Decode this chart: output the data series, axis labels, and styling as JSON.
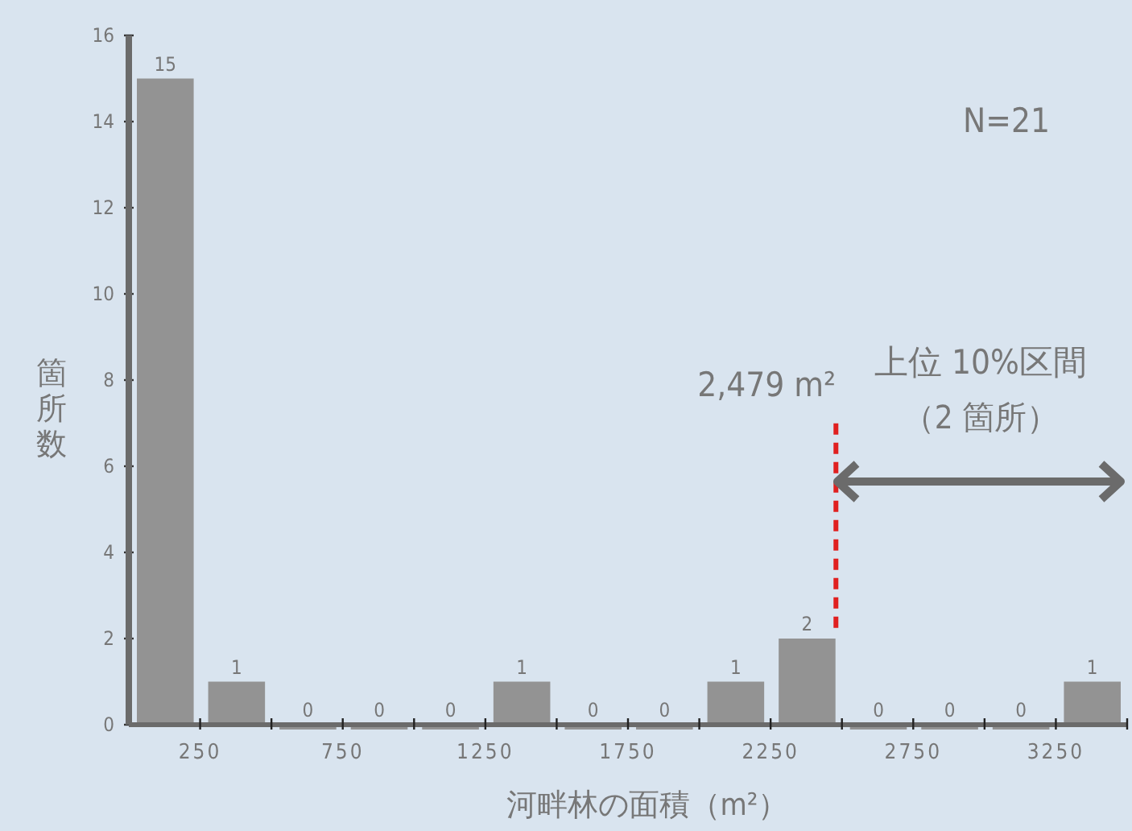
{
  "chart_data": {
    "type": "histogram",
    "xlabel": "河畔林の面積（m²）",
    "ylabel": "箇所数",
    "bins": [
      0,
      250,
      500,
      750,
      1000,
      1250,
      1500,
      1750,
      2000,
      2250,
      2500,
      2750,
      3000,
      3250,
      3500
    ],
    "values": [
      15,
      1,
      0,
      0,
      0,
      1,
      0,
      0,
      1,
      2,
      0,
      0,
      0,
      1
    ],
    "color": "#939393",
    "data_labels": true,
    "xlim": [
      0,
      3500
    ],
    "xticks": [
      250,
      {
        "value": 500,
        "label": null
      },
      750,
      {
        "value": 1000,
        "label": null
      },
      1250,
      {
        "value": 1500,
        "label": null
      },
      1750,
      {
        "value": 2000,
        "label": null
      },
      2250,
      {
        "value": 2500,
        "label": null
      },
      2750,
      {
        "value": 3000,
        "label": null
      },
      3250,
      {
        "value": 3500,
        "label": null
      }
    ],
    "ylim": [
      0,
      16
    ],
    "yticks": [
      0,
      2,
      4,
      6,
      8,
      10,
      12,
      14,
      16
    ],
    "ref_lines": [
      {
        "axis": "x",
        "value": 2479,
        "label": "2,479 m²",
        "color": "#e02020",
        "line_style": "dashed"
      }
    ],
    "annotations": [
      "N=21",
      "上位 10%区間",
      "（2 箇所）"
    ]
  }
}
